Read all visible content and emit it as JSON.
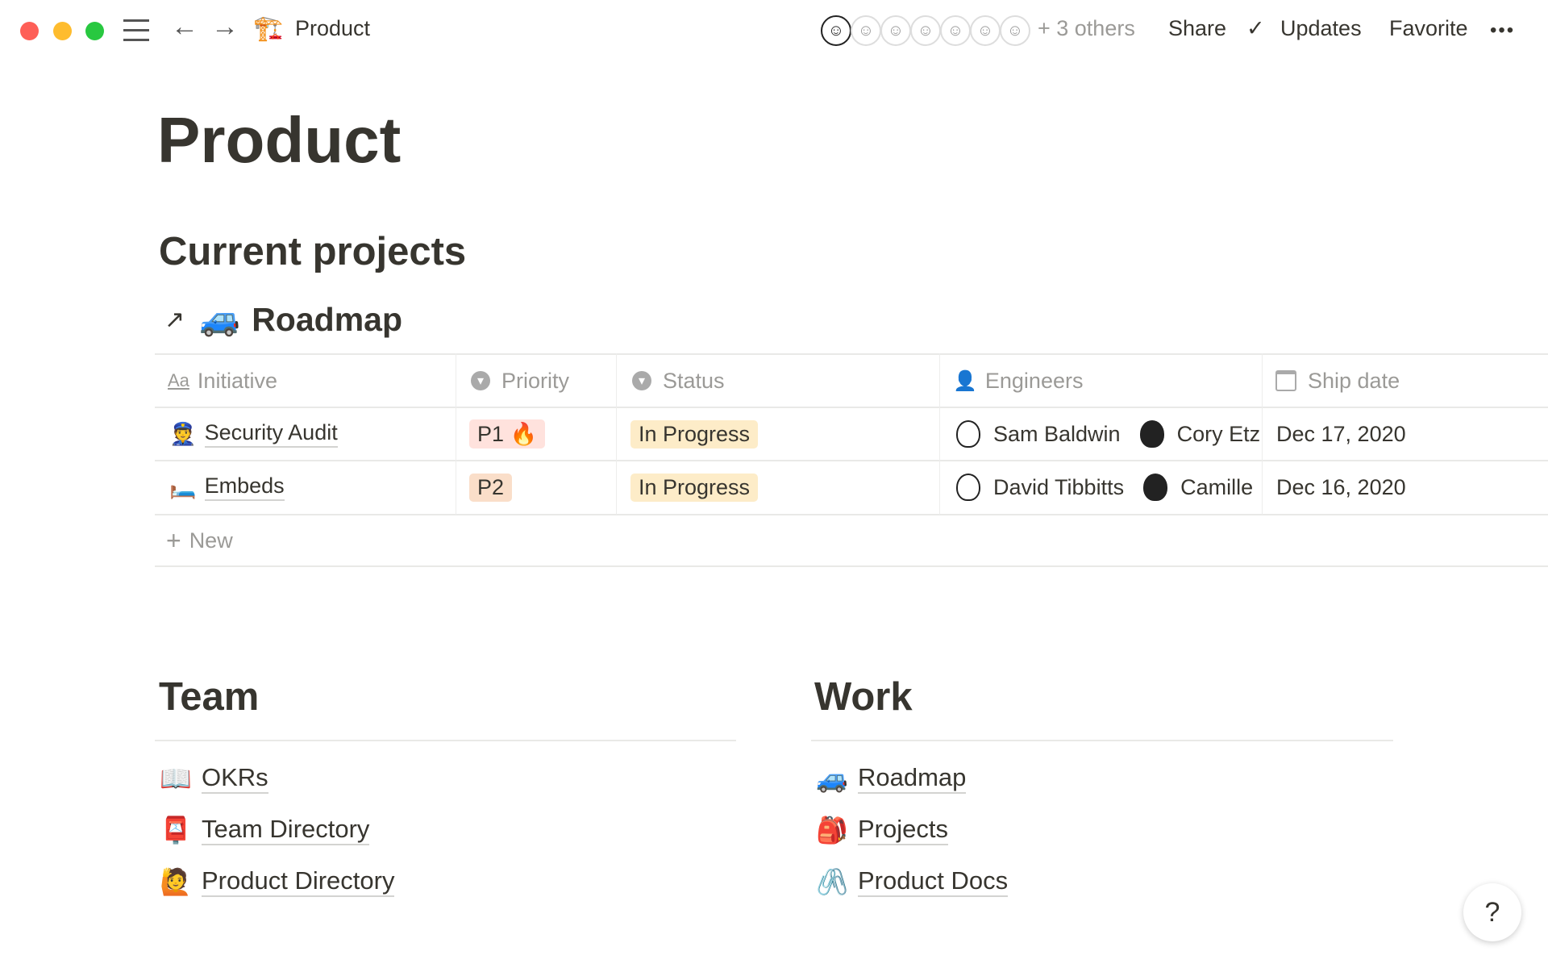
{
  "topbar": {
    "breadcrumb_icon": "🏗️",
    "breadcrumb": "Product",
    "others": "+ 3 others",
    "share": "Share",
    "updates": "Updates",
    "favorite": "Favorite",
    "more": "•••",
    "traffic_colors": [
      "#fe5f57",
      "#febc2e",
      "#28c840"
    ]
  },
  "page": {
    "title": "Product",
    "section_current": "Current projects"
  },
  "roadmap": {
    "arrow": "↗",
    "icon": "🚙",
    "title": "Roadmap"
  },
  "table": {
    "headers": [
      {
        "icon": "Aa",
        "label": "Initiative"
      },
      {
        "icon": "▾",
        "label": "Priority"
      },
      {
        "icon": "▾",
        "label": "Status"
      },
      {
        "icon": "person-icon",
        "label": "Engineers"
      },
      {
        "icon": "calendar-icon",
        "label": "Ship date"
      }
    ],
    "rows": [
      {
        "icon": "👮",
        "initiative": "Security Audit",
        "priority": "P1 🔥",
        "priority_color": "#ffe2dd",
        "status": "In Progress",
        "engineers": [
          "Sam Baldwin",
          "Cory Etz"
        ],
        "ship_date": "Dec 17, 2020"
      },
      {
        "icon": "🛏️",
        "initiative": "Embeds",
        "priority": "P2",
        "priority_color": "#fadec9",
        "status": "In Progress",
        "engineers": [
          "David Tibbitts",
          "Camille"
        ],
        "ship_date": "Dec 16, 2020"
      }
    ],
    "new_label": "New"
  },
  "team": {
    "heading": "Team",
    "items": [
      {
        "icon": "📖",
        "label": "OKRs"
      },
      {
        "icon": "📮",
        "label": "Team Directory"
      },
      {
        "icon": "🙋",
        "label": "Product Directory"
      }
    ]
  },
  "work": {
    "heading": "Work",
    "items": [
      {
        "icon": "🚙",
        "label": "Roadmap"
      },
      {
        "icon": "🎒",
        "label": "Projects"
      },
      {
        "icon": "🖇️",
        "label": "Product Docs"
      }
    ]
  },
  "help": "?"
}
